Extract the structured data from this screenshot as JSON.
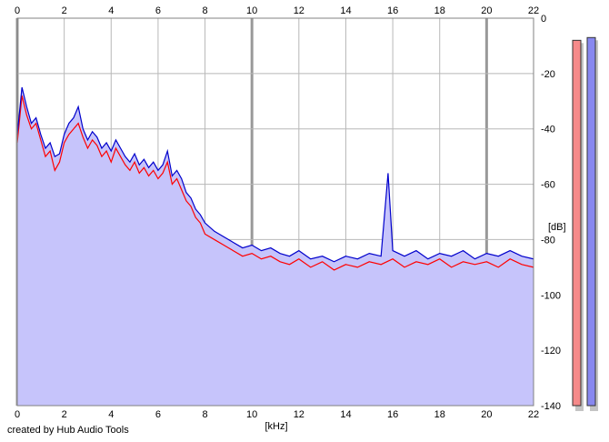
{
  "credit": "created by Hub Audio Tools",
  "chart_data": {
    "type": "line",
    "xlabel": "[kHz]",
    "ylabel": "[dB]",
    "xlim": [
      0,
      22
    ],
    "ylim": [
      -140,
      0
    ],
    "x_ticks": [
      "0",
      "2",
      "4",
      "6",
      "8",
      "10",
      "12",
      "14",
      "16",
      "18",
      "20",
      "22"
    ],
    "y_ticks": [
      "0",
      "-20",
      "-40",
      "-60",
      "-80",
      "-100",
      "-120",
      "-140"
    ],
    "grid": true,
    "colors": {
      "fill": "#c6c4fb",
      "left": "#ff0000",
      "right": "#0000cc",
      "grid": "#b8b8b8",
      "major_grid": "#999999"
    },
    "series": [
      {
        "color": "#ff0000",
        "x": [
          0,
          0.2,
          0.4,
          0.6,
          0.8,
          1,
          1.2,
          1.4,
          1.6,
          1.8,
          2,
          2.2,
          2.4,
          2.6,
          2.8,
          3,
          3.2,
          3.4,
          3.6,
          3.8,
          4,
          4.2,
          4.4,
          4.6,
          4.8,
          5,
          5.2,
          5.4,
          5.6,
          5.8,
          6,
          6.2,
          6.4,
          6.6,
          6.8,
          7,
          7.2,
          7.4,
          7.6,
          7.8,
          8,
          8.4,
          8.8,
          9.2,
          9.6,
          10,
          10.4,
          10.8,
          11.2,
          11.6,
          12,
          12.5,
          13,
          13.5,
          14,
          14.5,
          15,
          15.5,
          16,
          16.5,
          17,
          17.5,
          18,
          18.5,
          19,
          19.5,
          20,
          20.5,
          21,
          21.5,
          22
        ],
        "values": [
          -45,
          -28,
          -35,
          -40,
          -38,
          -44,
          -50,
          -48,
          -55,
          -52,
          -45,
          -42,
          -40,
          -38,
          -43,
          -47,
          -44,
          -46,
          -50,
          -48,
          -52,
          -47,
          -50,
          -53,
          -55,
          -52,
          -56,
          -54,
          -57,
          -55,
          -58,
          -56,
          -52,
          -60,
          -58,
          -62,
          -66,
          -68,
          -72,
          -74,
          -78,
          -80,
          -82,
          -84,
          -86,
          -85,
          -87,
          -86,
          -88,
          -89,
          -87,
          -90,
          -88,
          -91,
          -89,
          -90,
          -88,
          -89,
          -87,
          -90,
          -88,
          -89,
          -87,
          -90,
          -88,
          -89,
          -88,
          -90,
          -87,
          -89,
          -90
        ]
      },
      {
        "color": "#0000cc",
        "x": [
          0,
          0.2,
          0.4,
          0.6,
          0.8,
          1,
          1.2,
          1.4,
          1.6,
          1.8,
          2,
          2.2,
          2.4,
          2.6,
          2.8,
          3,
          3.2,
          3.4,
          3.6,
          3.8,
          4,
          4.2,
          4.4,
          4.6,
          4.8,
          5,
          5.2,
          5.4,
          5.6,
          5.8,
          6,
          6.2,
          6.4,
          6.6,
          6.8,
          7,
          7.2,
          7.4,
          7.6,
          7.8,
          8,
          8.4,
          8.8,
          9.2,
          9.6,
          10,
          10.4,
          10.8,
          11.2,
          11.6,
          12,
          12.5,
          13,
          13.5,
          14,
          14.5,
          15,
          15.5,
          15.8,
          16,
          16.5,
          17,
          17.5,
          18,
          18.5,
          19,
          19.5,
          20,
          20.5,
          21,
          21.5,
          22
        ],
        "values": [
          -42,
          -25,
          -32,
          -38,
          -36,
          -42,
          -47,
          -45,
          -50,
          -49,
          -42,
          -38,
          -36,
          -32,
          -40,
          -44,
          -41,
          -43,
          -47,
          -45,
          -48,
          -44,
          -47,
          -50,
          -52,
          -49,
          -53,
          -51,
          -54,
          -52,
          -55,
          -53,
          -48,
          -57,
          -55,
          -58,
          -63,
          -65,
          -69,
          -71,
          -74,
          -77,
          -79,
          -81,
          -83,
          -82,
          -84,
          -83,
          -85,
          -86,
          -84,
          -87,
          -86,
          -88,
          -86,
          -87,
          -85,
          -86,
          -56,
          -84,
          -86,
          -84,
          -87,
          -85,
          -86,
          -84,
          -87,
          -85,
          -86,
          -84,
          -86,
          -87
        ]
      }
    ],
    "level_meters": [
      {
        "channel": "left",
        "color": "#f58a8a",
        "value_db": -8
      },
      {
        "channel": "right",
        "color": "#8888f0",
        "value_db": -7
      }
    ]
  }
}
